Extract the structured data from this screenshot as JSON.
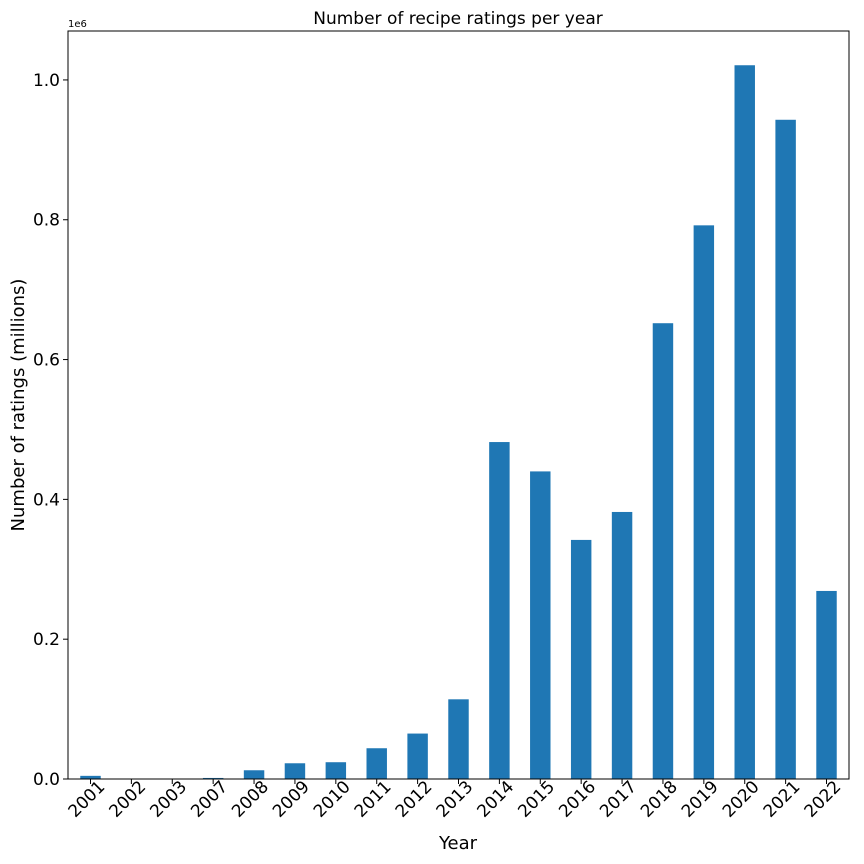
{
  "chart_data": {
    "type": "bar",
    "title": "Number of recipe ratings per year",
    "xlabel": "Year",
    "ylabel": "Number of ratings (millions)",
    "offset_text": "1e6",
    "ylim": [
      0,
      1070000
    ],
    "yticks": [
      0,
      200000,
      400000,
      600000,
      800000,
      1000000
    ],
    "ytick_labels": [
      "0.0",
      "0.2",
      "0.4",
      "0.6",
      "0.8",
      "1.0"
    ],
    "categories": [
      "2001",
      "2002",
      "2003",
      "2007",
      "2008",
      "2009",
      "2010",
      "2011",
      "2012",
      "2013",
      "2014",
      "2015",
      "2016",
      "2017",
      "2018",
      "2019",
      "2020",
      "2021",
      "2022"
    ],
    "values": [
      4500,
      400,
      300,
      1500,
      12500,
      22500,
      24000,
      44000,
      65000,
      114000,
      482000,
      440000,
      342000,
      382000,
      652000,
      792000,
      1021000,
      943000,
      269000
    ],
    "bar_color": "#1f77b4",
    "grid": false,
    "legend": "none"
  }
}
